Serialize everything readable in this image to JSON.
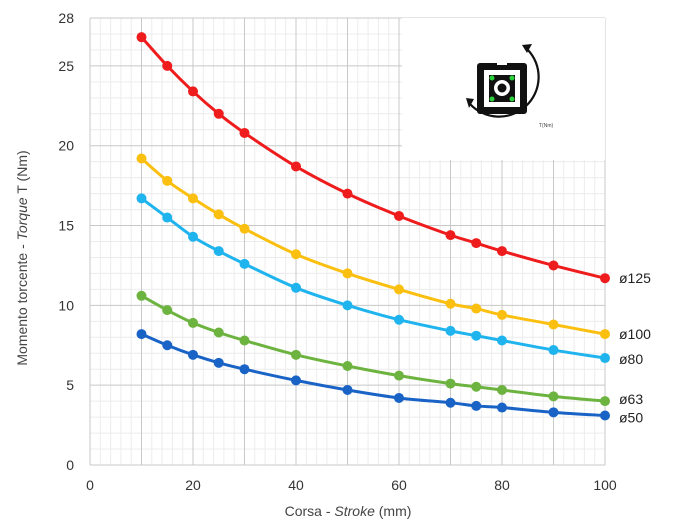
{
  "chart_data": {
    "type": "line",
    "xlabel_regular": "Corsa - ",
    "xlabel_italic": "Stroke",
    "xlabel_unit": " (mm)",
    "ylabel_regular": "Momento torcente - ",
    "ylabel_italic": "Torque",
    "ylabel_unit": "  T (Nm)",
    "xlim": [
      0,
      100
    ],
    "ylim": [
      0,
      28
    ],
    "x_ticks": [
      "0",
      "20",
      "40",
      "60",
      "80",
      "100"
    ],
    "y_ticks": [
      "0",
      "5",
      "10",
      "15",
      "20",
      "25",
      "28"
    ],
    "y_tick_values": [
      0,
      5,
      10,
      15,
      20,
      25,
      28
    ],
    "grid": true,
    "x": [
      10,
      15,
      20,
      25,
      30,
      40,
      50,
      60,
      70,
      75,
      80,
      90,
      100
    ],
    "series": [
      {
        "name": "ø125",
        "color": "#ee1c1c",
        "values": [
          26.8,
          25.0,
          23.4,
          22.0,
          20.8,
          18.7,
          17.0,
          15.6,
          14.4,
          13.9,
          13.4,
          12.5,
          11.7
        ]
      },
      {
        "name": "ø100",
        "color": "#fbbf10",
        "values": [
          19.2,
          17.8,
          16.7,
          15.7,
          14.8,
          13.2,
          12.0,
          11.0,
          10.1,
          9.8,
          9.4,
          8.8,
          8.2
        ]
      },
      {
        "name": "ø80",
        "color": "#1fb4ee",
        "values": [
          16.7,
          15.5,
          14.3,
          13.4,
          12.6,
          11.1,
          10.0,
          9.1,
          8.4,
          8.1,
          7.8,
          7.2,
          6.7
        ]
      },
      {
        "name": "ø63",
        "color": "#6db33f",
        "values": [
          10.6,
          9.7,
          8.9,
          8.3,
          7.8,
          6.9,
          6.2,
          5.6,
          5.1,
          4.9,
          4.7,
          4.3,
          4.0
        ]
      },
      {
        "name": "ø50",
        "color": "#1a63c6",
        "values": [
          8.2,
          7.5,
          6.9,
          6.4,
          6.0,
          5.3,
          4.7,
          4.2,
          3.9,
          3.7,
          3.6,
          3.3,
          3.1
        ]
      }
    ],
    "inset_caption": "T(Nm)"
  }
}
